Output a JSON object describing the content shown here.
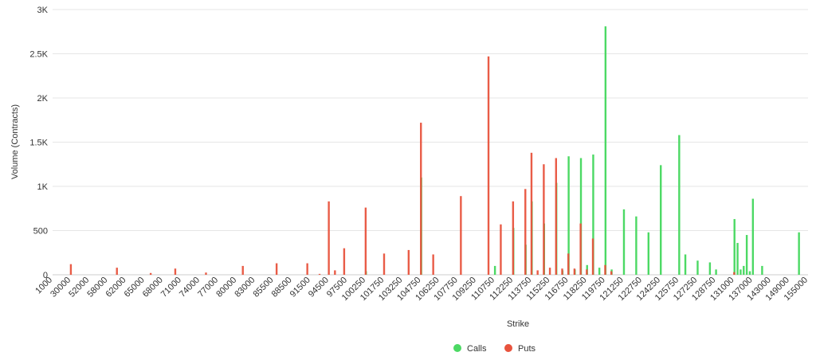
{
  "chart_data": {
    "type": "bar",
    "xlabel": "Strike",
    "ylabel": "Volume (Contracts)",
    "ylim": [
      0,
      3000
    ],
    "yticks": [
      {
        "value": 0,
        "label": "0"
      },
      {
        "value": 500,
        "label": "500"
      },
      {
        "value": 1000,
        "label": "1K"
      },
      {
        "value": 1500,
        "label": "1.5K"
      },
      {
        "value": 2000,
        "label": "2K"
      },
      {
        "value": 2500,
        "label": "2.5K"
      },
      {
        "value": 3000,
        "label": "3K"
      }
    ],
    "x_tick_labels": [
      "1000",
      "30000",
      "52000",
      "58000",
      "62000",
      "65000",
      "68000",
      "71000",
      "74000",
      "77000",
      "80000",
      "83000",
      "85500",
      "88500",
      "91500",
      "94500",
      "97500",
      "100250",
      "101750",
      "103250",
      "104750",
      "106250",
      "107750",
      "109250",
      "110750",
      "112250",
      "113750",
      "115250",
      "116750",
      "118250",
      "119750",
      "121250",
      "122750",
      "124250",
      "125750",
      "127250",
      "128750",
      "131000",
      "137000",
      "143000",
      "149000",
      "155000"
    ],
    "grid": true,
    "legend_position": "bottom-center",
    "series": [
      {
        "name": "Calls",
        "color": "#4cd964",
        "points": [
          {
            "x": 100250,
            "y": 40
          },
          {
            "x": 104750,
            "y": 1100
          },
          {
            "x": 110750,
            "y": 100
          },
          {
            "x": 112250,
            "y": 530
          },
          {
            "x": 113250,
            "y": 340
          },
          {
            "x": 113750,
            "y": 830
          },
          {
            "x": 114750,
            "y": 580
          },
          {
            "x": 115750,
            "y": 1040
          },
          {
            "x": 116250,
            "y": 50
          },
          {
            "x": 116750,
            "y": 1340
          },
          {
            "x": 117250,
            "y": 60
          },
          {
            "x": 117750,
            "y": 1320
          },
          {
            "x": 118250,
            "y": 110
          },
          {
            "x": 118750,
            "y": 1360
          },
          {
            "x": 119250,
            "y": 80
          },
          {
            "x": 119750,
            "y": 2810
          },
          {
            "x": 120250,
            "y": 60
          },
          {
            "x": 121250,
            "y": 740
          },
          {
            "x": 122250,
            "y": 660
          },
          {
            "x": 123250,
            "y": 480
          },
          {
            "x": 124250,
            "y": 1240
          },
          {
            "x": 125750,
            "y": 1580
          },
          {
            "x": 126250,
            "y": 230
          },
          {
            "x": 127250,
            "y": 160
          },
          {
            "x": 128250,
            "y": 140
          },
          {
            "x": 128750,
            "y": 60
          },
          {
            "x": 131000,
            "y": 630
          },
          {
            "x": 132000,
            "y": 360
          },
          {
            "x": 133000,
            "y": 60
          },
          {
            "x": 134000,
            "y": 100
          },
          {
            "x": 135000,
            "y": 450
          },
          {
            "x": 136000,
            "y": 40
          },
          {
            "x": 137000,
            "y": 860
          },
          {
            "x": 140000,
            "y": 100
          },
          {
            "x": 152000,
            "y": 480
          }
        ]
      },
      {
        "name": "Puts",
        "color": "#e8533d",
        "points": [
          {
            "x": 30000,
            "y": 120
          },
          {
            "x": 60000,
            "y": 80
          },
          {
            "x": 66000,
            "y": 20
          },
          {
            "x": 70000,
            "y": 70
          },
          {
            "x": 75000,
            "y": 25
          },
          {
            "x": 81000,
            "y": 100
          },
          {
            "x": 86000,
            "y": 130
          },
          {
            "x": 91000,
            "y": 130
          },
          {
            "x": 93000,
            "y": 10
          },
          {
            "x": 94500,
            "y": 830
          },
          {
            "x": 95500,
            "y": 50
          },
          {
            "x": 97000,
            "y": 300
          },
          {
            "x": 100250,
            "y": 760
          },
          {
            "x": 101750,
            "y": 240
          },
          {
            "x": 103750,
            "y": 280
          },
          {
            "x": 104750,
            "y": 1720
          },
          {
            "x": 105750,
            "y": 230
          },
          {
            "x": 108000,
            "y": 890
          },
          {
            "x": 110250,
            "y": 2470
          },
          {
            "x": 111250,
            "y": 570
          },
          {
            "x": 112250,
            "y": 830
          },
          {
            "x": 113250,
            "y": 970
          },
          {
            "x": 113750,
            "y": 1380
          },
          {
            "x": 114250,
            "y": 50
          },
          {
            "x": 114750,
            "y": 1250
          },
          {
            "x": 115250,
            "y": 80
          },
          {
            "x": 115750,
            "y": 1320
          },
          {
            "x": 116250,
            "y": 70
          },
          {
            "x": 116750,
            "y": 240
          },
          {
            "x": 117250,
            "y": 70
          },
          {
            "x": 117750,
            "y": 580
          },
          {
            "x": 118250,
            "y": 60
          },
          {
            "x": 118750,
            "y": 410
          },
          {
            "x": 119750,
            "y": 110
          },
          {
            "x": 120250,
            "y": 40
          },
          {
            "x": 131000,
            "y": 30
          }
        ]
      }
    ]
  }
}
